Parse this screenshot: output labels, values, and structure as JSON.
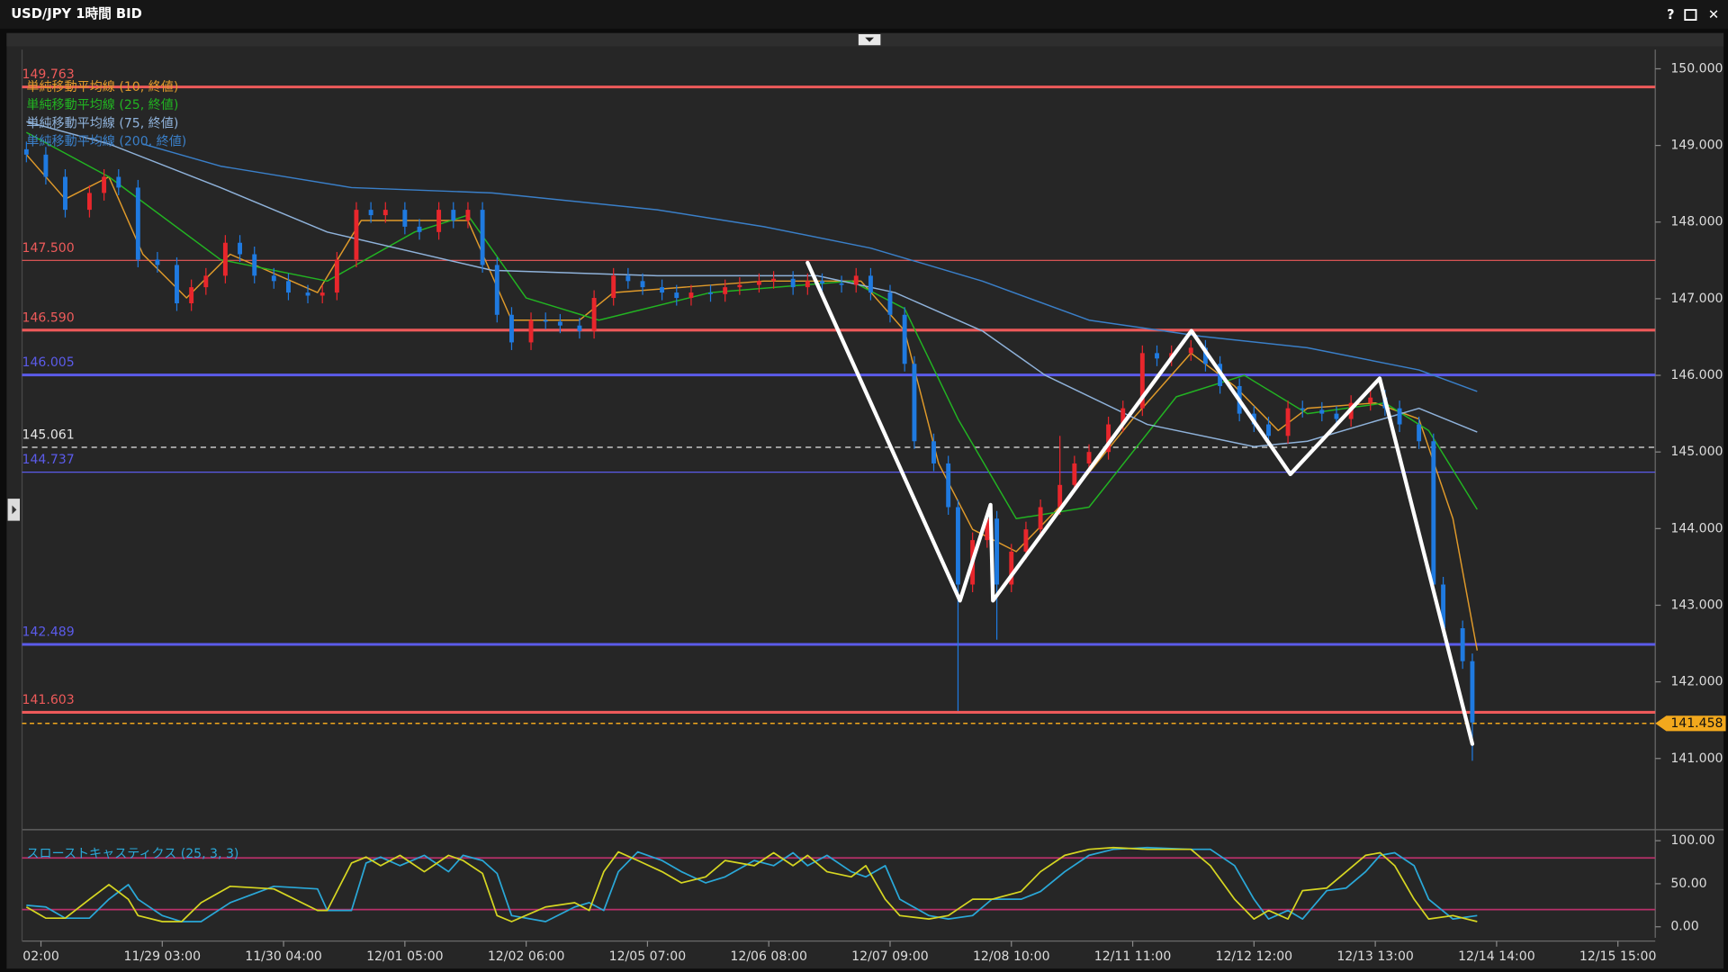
{
  "window_buttons": [
    "?",
    "✕"
  ],
  "chart_data": {
    "type": "candlestick",
    "title": "USD/JPY 1時間 BID",
    "xlim": [
      -3.9,
      332.7
    ],
    "xticks": [
      {
        "value": 0,
        "label": "02:00"
      },
      {
        "value": 25,
        "label": "11/29 03:00"
      },
      {
        "value": 50,
        "label": "11/30 04:00"
      },
      {
        "value": 75,
        "label": "12/01 05:00"
      },
      {
        "value": 100,
        "label": "12/02 06:00"
      },
      {
        "value": 125,
        "label": "12/05 07:00"
      },
      {
        "value": 150,
        "label": "12/06 08:00"
      },
      {
        "value": 175,
        "label": "12/07 09:00"
      },
      {
        "value": 200,
        "label": "12/08 10:00"
      },
      {
        "value": 225,
        "label": "12/11 11:00"
      },
      {
        "value": 250,
        "label": "12/12 12:00"
      },
      {
        "value": 275,
        "label": "12/13 13:00"
      },
      {
        "value": 300,
        "label": "12/14 14:00"
      },
      {
        "value": 325,
        "label": "12/15 15:00"
      }
    ],
    "ylim": [
      140.1,
      150.25
    ],
    "yticks": [
      {
        "value": 141,
        "label": "141.000"
      },
      {
        "value": 142,
        "label": "142.000"
      },
      {
        "value": 143,
        "label": "143.000"
      },
      {
        "value": 144,
        "label": "144.000"
      },
      {
        "value": 145,
        "label": "145.000"
      },
      {
        "value": 146,
        "label": "146.000"
      },
      {
        "value": 147,
        "label": "147.000"
      },
      {
        "value": 148,
        "label": "148.000"
      },
      {
        "value": 149,
        "label": "149.000"
      },
      {
        "value": 150,
        "label": "150.000"
      }
    ],
    "candles": {
      "up_color": "#e8262c",
      "down_color": "#1f7ae0",
      "x": [
        -3,
        1,
        5,
        10,
        13,
        16,
        20,
        24,
        28,
        31,
        34,
        38,
        41,
        44,
        48,
        51,
        55,
        58,
        61,
        65,
        68,
        71,
        75,
        78,
        82,
        85,
        88,
        91,
        94,
        97,
        101,
        104,
        107,
        111,
        114,
        118,
        121,
        124,
        128,
        131,
        134,
        138,
        141,
        144,
        148,
        151,
        155,
        158,
        161,
        165,
        168,
        171,
        175,
        178,
        180,
        184,
        187,
        189,
        192,
        195,
        197,
        200,
        203,
        206,
        210,
        213,
        216,
        220,
        223,
        227,
        230,
        233,
        237,
        240,
        243,
        247,
        250,
        253,
        257,
        260,
        264,
        267,
        270,
        274,
        277,
        280,
        284,
        287,
        289,
        293,
        295
      ],
      "open": [
        148.95,
        148.88,
        148.59,
        148.16,
        148.38,
        148.59,
        148.45,
        147.51,
        147.44,
        146.94,
        147.15,
        147.3,
        147.73,
        147.58,
        147.3,
        147.23,
        147.08,
        147.04,
        147.08,
        147.51,
        148.16,
        148.09,
        148.16,
        147.94,
        147.87,
        148.16,
        148.02,
        148.16,
        147.44,
        146.79,
        146.43,
        146.72,
        146.7,
        146.65,
        146.58,
        147.01,
        147.3,
        147.23,
        147.15,
        147.08,
        147.01,
        147.08,
        147.06,
        147.15,
        147.18,
        147.23,
        147.26,
        147.15,
        147.23,
        147.2,
        147.18,
        147.3,
        147.08,
        146.79,
        146.15,
        145.14,
        144.85,
        144.28,
        143.27,
        143.85,
        144.13,
        143.27,
        143.7,
        143.99,
        144.28,
        144.57,
        144.85,
        145.0,
        145.36,
        145.57,
        146.29,
        146.22,
        146.29,
        146.36,
        146.15,
        145.86,
        145.5,
        145.36,
        145.21,
        145.57,
        145.55,
        145.5,
        145.43,
        145.64,
        145.71,
        145.57,
        145.36,
        145.14,
        143.27,
        142.7,
        142.27
      ],
      "high": [
        149.05,
        148.98,
        148.69,
        148.48,
        148.69,
        148.69,
        148.55,
        147.61,
        147.54,
        147.25,
        147.4,
        147.83,
        147.83,
        147.68,
        147.4,
        147.33,
        147.18,
        147.18,
        147.61,
        148.26,
        148.26,
        148.26,
        148.26,
        148.04,
        148.26,
        148.26,
        148.26,
        148.26,
        147.54,
        146.89,
        146.82,
        146.82,
        146.8,
        146.75,
        147.11,
        147.4,
        147.4,
        147.33,
        147.25,
        147.18,
        147.18,
        147.18,
        147.25,
        147.28,
        147.33,
        147.36,
        147.36,
        147.33,
        147.33,
        147.3,
        147.4,
        147.4,
        147.18,
        146.89,
        146.25,
        145.24,
        144.95,
        144.38,
        143.95,
        144.23,
        144.23,
        143.8,
        144.09,
        144.38,
        145.21,
        144.95,
        145.1,
        145.46,
        145.67,
        146.39,
        146.39,
        146.39,
        146.46,
        146.46,
        146.25,
        145.96,
        145.6,
        145.46,
        145.67,
        145.67,
        145.65,
        145.6,
        145.74,
        145.81,
        145.81,
        145.67,
        145.46,
        145.24,
        143.37,
        142.8,
        142.37
      ],
      "low": [
        148.78,
        148.49,
        148.06,
        148.06,
        148.28,
        148.35,
        147.41,
        147.34,
        146.84,
        146.84,
        147.05,
        147.2,
        147.48,
        147.2,
        147.13,
        146.98,
        146.94,
        146.94,
        146.98,
        147.41,
        147.99,
        147.99,
        147.84,
        147.77,
        147.77,
        147.92,
        147.92,
        147.34,
        146.69,
        146.33,
        146.33,
        146.6,
        146.55,
        146.48,
        146.48,
        146.91,
        147.13,
        147.05,
        146.98,
        146.91,
        146.91,
        146.96,
        146.96,
        147.05,
        147.08,
        147.13,
        147.05,
        147.05,
        147.1,
        147.08,
        147.08,
        146.98,
        146.69,
        146.05,
        145.04,
        144.75,
        144.18,
        141.62,
        143.17,
        143.75,
        142.55,
        143.17,
        143.6,
        143.89,
        144.18,
        144.47,
        144.75,
        144.9,
        145.26,
        145.47,
        146.12,
        146.12,
        146.19,
        146.05,
        145.76,
        145.4,
        145.26,
        145.11,
        145.11,
        145.45,
        145.4,
        145.33,
        145.33,
        145.54,
        145.47,
        145.26,
        145.04,
        143.17,
        142.6,
        142.17,
        140.97
      ],
      "close": [
        148.88,
        148.59,
        148.16,
        148.38,
        148.59,
        148.45,
        147.51,
        147.44,
        146.94,
        147.15,
        147.3,
        147.73,
        147.58,
        147.3,
        147.23,
        147.08,
        147.04,
        147.08,
        147.51,
        148.16,
        148.09,
        148.16,
        147.94,
        147.87,
        148.16,
        148.02,
        148.16,
        147.44,
        146.79,
        146.43,
        146.72,
        146.7,
        146.65,
        146.58,
        147.01,
        147.3,
        147.23,
        147.15,
        147.08,
        147.01,
        147.08,
        147.06,
        147.15,
        147.18,
        147.23,
        147.26,
        147.15,
        147.23,
        147.2,
        147.18,
        147.3,
        147.08,
        146.79,
        146.15,
        145.14,
        144.85,
        144.28,
        143.27,
        143.85,
        144.13,
        143.27,
        143.7,
        143.99,
        144.28,
        144.57,
        144.85,
        145.0,
        145.36,
        145.57,
        146.29,
        146.22,
        146.29,
        146.36,
        146.15,
        145.86,
        145.5,
        145.36,
        145.21,
        145.57,
        145.55,
        145.5,
        145.43,
        145.64,
        145.71,
        145.57,
        145.36,
        145.14,
        143.27,
        142.7,
        142.27,
        141.47
      ]
    },
    "series": [
      {
        "name": "単純移動平均線 (10, 終値)",
        "color": "#e09a2a",
        "x": [
          -3,
          5,
          14,
          21,
          30,
          39,
          57,
          66,
          82,
          88,
          97,
          111,
          118,
          149,
          169,
          178,
          185,
          192,
          201,
          212,
          225,
          237,
          246,
          255,
          261,
          275,
          284,
          291,
          296
        ],
        "values": [
          148.88,
          148.3,
          148.59,
          147.58,
          147.01,
          147.58,
          147.08,
          148.02,
          148.02,
          148.02,
          146.72,
          146.72,
          147.08,
          147.23,
          147.23,
          146.58,
          144.85,
          143.99,
          143.7,
          144.42,
          145.43,
          146.29,
          145.86,
          145.28,
          145.57,
          145.64,
          145.43,
          144.13,
          142.41
        ]
      },
      {
        "name": "単純移動平均線 (25, 終値)",
        "color": "#22b422",
        "x": [
          -3,
          14,
          37,
          59,
          77,
          88,
          100,
          115,
          138,
          167,
          178,
          189,
          201,
          216,
          234,
          248,
          261,
          277,
          286,
          296
        ],
        "values": [
          149.17,
          148.59,
          147.51,
          147.23,
          147.87,
          148.09,
          147.01,
          146.72,
          147.08,
          147.23,
          146.87,
          145.43,
          144.13,
          144.28,
          145.72,
          146.0,
          145.5,
          145.64,
          145.28,
          144.25
        ]
      },
      {
        "name": "単純移動平均線 (75, 終値)",
        "color": "#8fb2da",
        "x": [
          -3,
          14,
          37,
          59,
          93,
          127,
          160,
          176,
          194,
          207,
          228,
          250,
          261,
          284,
          296
        ],
        "values": [
          149.31,
          149.02,
          148.45,
          147.87,
          147.37,
          147.3,
          147.3,
          147.08,
          146.58,
          146.0,
          145.36,
          145.07,
          145.14,
          145.57,
          145.26
        ]
      },
      {
        "name": "単純移動平均線 (200, 終値)",
        "color": "#3a7fc8",
        "x": [
          21,
          37,
          64,
          93,
          127,
          149,
          171,
          194,
          216,
          239,
          261,
          284,
          296
        ],
        "values": [
          149.02,
          148.73,
          148.45,
          148.38,
          148.16,
          147.94,
          147.66,
          147.23,
          146.72,
          146.51,
          146.36,
          146.07,
          145.79
        ]
      }
    ],
    "zigzag": {
      "color": "#ffffff",
      "x": [
        158.0,
        189.4,
        195.7,
        196.2,
        237.1,
        257.5,
        275.9,
        295.0
      ],
      "values": [
        147.47,
        143.06,
        144.31,
        143.06,
        146.58,
        144.71,
        145.96,
        141.19
      ]
    },
    "hlines": [
      {
        "value": 149.763,
        "label": "149.763",
        "color": "#ee5a5a",
        "style": "solid",
        "bold": true
      },
      {
        "value": 147.5,
        "label": "147.500",
        "color": "#ee5a5a",
        "style": "solid",
        "bold": false
      },
      {
        "value": 146.59,
        "label": "146.590",
        "color": "#ee5a5a",
        "style": "solid",
        "bold": true
      },
      {
        "value": 146.005,
        "label": "146.005",
        "color": "#5b5bea",
        "style": "solid",
        "bold": true
      },
      {
        "value": 145.061,
        "label": "145.061",
        "color": "#e6e6e6",
        "style": "dashed",
        "bold": false
      },
      {
        "value": 144.737,
        "label": "144.737",
        "color": "#5b5bea",
        "style": "solid",
        "bold": false
      },
      {
        "value": 142.489,
        "label": "142.489",
        "color": "#5b5bea",
        "style": "solid",
        "bold": true
      },
      {
        "value": 141.603,
        "label": "141.603",
        "color": "#ee5a5a",
        "style": "solid",
        "bold": true
      }
    ],
    "current": {
      "value": 141.458,
      "label": "141.458",
      "color": "#f2a81d"
    },
    "stochastic": {
      "name": "スローストキャスティクス (25, 3, 3)",
      "name_color": "#2aa8d8",
      "ylim": [
        -12.8,
        106.4
      ],
      "yticks": [
        {
          "value": 100,
          "label": "100.00"
        },
        {
          "value": 50,
          "label": "50.00"
        },
        {
          "value": 0,
          "label": "0.00"
        }
      ],
      "levels": [
        80,
        20
      ],
      "level_color": "#b8306a",
      "x": [
        -3,
        1,
        5,
        10,
        14,
        18,
        20,
        25,
        29,
        33,
        39,
        48,
        57,
        59,
        64,
        67,
        70,
        74,
        79,
        84,
        87,
        91,
        94,
        97,
        104,
        110,
        113,
        116,
        119,
        123,
        128,
        132,
        137,
        141,
        147,
        151,
        155,
        158,
        162,
        167,
        170,
        174,
        177,
        183,
        187,
        192,
        196,
        202,
        206,
        211,
        216,
        221,
        228,
        237,
        241,
        246,
        250,
        253,
        257,
        260,
        265,
        269,
        273,
        276,
        279,
        283,
        286,
        291,
        296
      ],
      "k": {
        "color": "#d6d622",
        "values": [
          23,
          10,
          10,
          32,
          49,
          32,
          13,
          6,
          6,
          28,
          47,
          44,
          19,
          19,
          74,
          81,
          71,
          83,
          64,
          83,
          77,
          62,
          13,
          6,
          23,
          28,
          19,
          64,
          87,
          77,
          64,
          51,
          58,
          77,
          71,
          86,
          71,
          83,
          64,
          58,
          71,
          32,
          13,
          9,
          13,
          32,
          32,
          41,
          64,
          83,
          90,
          92,
          90,
          90,
          71,
          32,
          9,
          19,
          9,
          42,
          45,
          64,
          83,
          86,
          71,
          32,
          9,
          13,
          6
        ]
      },
      "d": {
        "color": "#2aa8d8",
        "values": [
          25,
          23,
          10,
          10,
          32,
          49,
          32,
          13,
          6,
          6,
          28,
          47,
          44,
          19,
          19,
          74,
          81,
          71,
          83,
          64,
          83,
          77,
          62,
          13,
          6,
          23,
          28,
          19,
          64,
          87,
          77,
          64,
          51,
          58,
          77,
          71,
          86,
          71,
          83,
          64,
          58,
          71,
          32,
          13,
          9,
          13,
          32,
          32,
          41,
          64,
          83,
          90,
          92,
          90,
          90,
          71,
          32,
          9,
          19,
          9,
          42,
          45,
          64,
          83,
          86,
          71,
          32,
          9,
          13
        ]
      }
    }
  }
}
